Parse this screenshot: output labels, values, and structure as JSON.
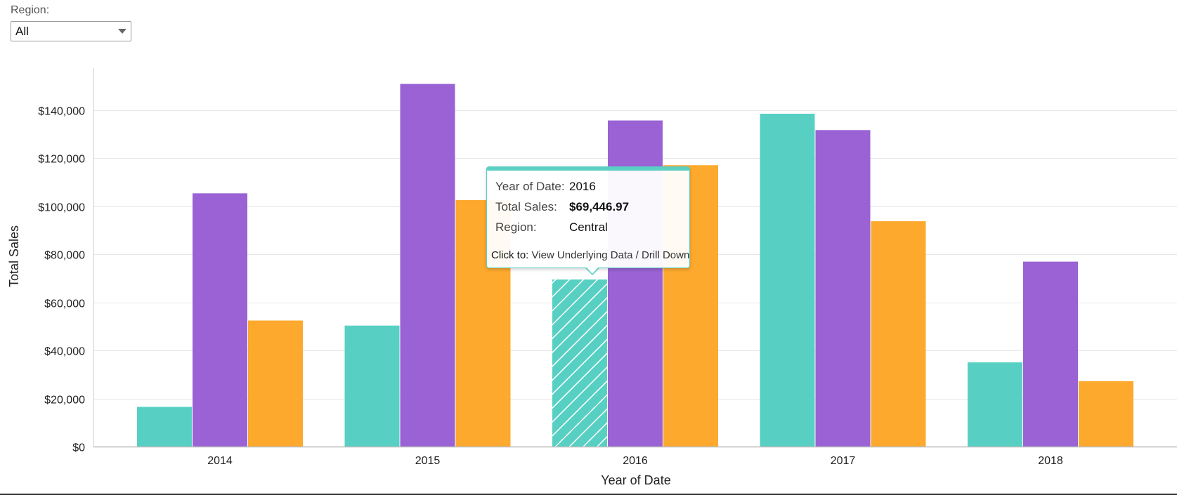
{
  "filter": {
    "label": "Region:",
    "selected": "All"
  },
  "chart_data": {
    "type": "bar",
    "categories": [
      "2014",
      "2015",
      "2016",
      "2017",
      "2018"
    ],
    "series": [
      {
        "color": "#57d0c3",
        "values": [
          16500,
          50300,
          69446.97,
          138400,
          35000
        ]
      },
      {
        "color": "#9a62d4",
        "values": [
          105300,
          150800,
          135600,
          131600,
          76900
        ]
      },
      {
        "color": "#fca92d",
        "values": [
          52400,
          102500,
          117000,
          93700,
          27200
        ]
      }
    ],
    "xlabel": "Year of Date",
    "ylabel": "Total Sales",
    "ylim": [
      0,
      155000
    ],
    "yticks": [
      {
        "value": 0,
        "label": "$0"
      },
      {
        "value": 20000,
        "label": "$20,000"
      },
      {
        "value": 40000,
        "label": "$40,000"
      },
      {
        "value": 60000,
        "label": "$60,000"
      },
      {
        "value": 80000,
        "label": "$80,000"
      },
      {
        "value": 100000,
        "label": "$100,000"
      },
      {
        "value": 120000,
        "label": "$120,000"
      },
      {
        "value": 140000,
        "label": "$140,000"
      }
    ],
    "grid": true,
    "highlighted": {
      "category_index": 2,
      "series_index": 0
    }
  },
  "tooltip": {
    "rows": [
      {
        "key": "Year of Date:",
        "value": "2016"
      },
      {
        "key": "Total Sales:",
        "value": "$69,446.97"
      },
      {
        "key": "Region:",
        "value": "Central"
      }
    ],
    "click_prefix": "Click to:",
    "click_actions": "View Underlying Data / Drill Down"
  }
}
